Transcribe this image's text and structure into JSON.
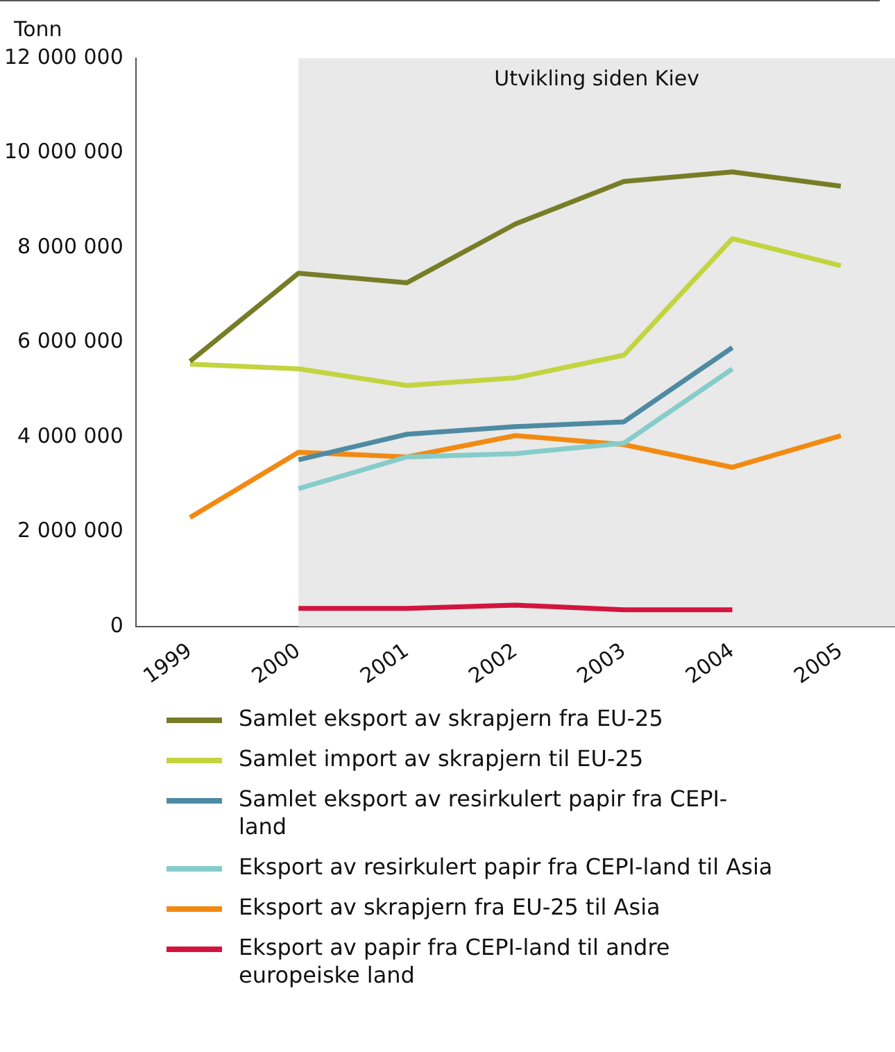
{
  "chart_data": {
    "type": "line",
    "ylabel": "Tonn",
    "categories": [
      "1999",
      "2000",
      "2001",
      "2002",
      "2003",
      "2004",
      "2005"
    ],
    "ylim": [
      0,
      12000000
    ],
    "yticks": [
      0,
      {
        "value": 2000000,
        "label": "2 000 000"
      },
      {
        "value": 4000000,
        "label": "4 000 000"
      },
      {
        "value": 6000000,
        "label": "6 000 000"
      },
      {
        "value": 8000000,
        "label": "8 000 000"
      },
      {
        "value": 10000000,
        "label": "10 000 000"
      },
      {
        "value": 12000000,
        "label": "12 000 000"
      }
    ],
    "grid": false,
    "legend": "bottom",
    "marker": "none",
    "line_style": "solid",
    "bands": [
      {
        "axis": "x",
        "from": "2000",
        "to": "2005",
        "label": "Utvikling siden Kiev",
        "color": "#e8e9e8"
      }
    ],
    "series": [
      {
        "name": "Samlet eksport av skrapjern fra EU-25",
        "color": "#777d27",
        "values": [
          5600000,
          7460000,
          7260000,
          8500000,
          9400000,
          9600000,
          9300000
        ]
      },
      {
        "name": "Samlet import av skrapjern til EU-25",
        "color": "#c2d43f",
        "values": [
          5540000,
          5440000,
          5090000,
          5250000,
          5730000,
          8190000,
          7620000
        ]
      },
      {
        "name": "Samlet eksport av resirkulert papir fra CEPI-land",
        "color": "#4f8aa3",
        "values": [
          null,
          3520000,
          4060000,
          4220000,
          4320000,
          5890000,
          null
        ]
      },
      {
        "name": "Eksport av resirkulert papir fra CEPI-land til Asia",
        "color": "#86cccb",
        "values": [
          null,
          2910000,
          3580000,
          3650000,
          3870000,
          5440000,
          null
        ]
      },
      {
        "name": "Eksport av skrapjern fra EU-25 til Asia",
        "color": "#f28a12",
        "values": [
          2300000,
          3680000,
          3580000,
          4030000,
          3840000,
          3360000,
          4030000
        ]
      },
      {
        "name": "Eksport av papir fra CEPI-land til andre europeiske land",
        "color": "#d3143f",
        "values": [
          null,
          380000,
          380000,
          450000,
          350000,
          350000,
          null
        ]
      }
    ]
  }
}
